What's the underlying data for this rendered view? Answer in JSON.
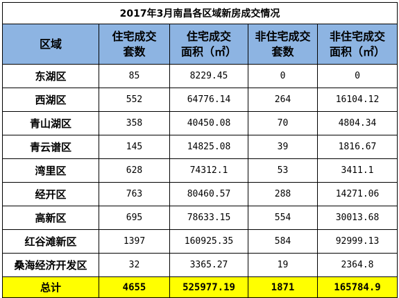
{
  "title": "2017年3月南昌各区域新房成交情况",
  "headers": [
    {
      "line1": "区域",
      "line2": ""
    },
    {
      "line1": "住宅成交",
      "line2": "套数"
    },
    {
      "line1": "住宅成交",
      "line2": "面积（㎡）"
    },
    {
      "line1": "非住宅成交",
      "line2": "套数"
    },
    {
      "line1": "非住宅成交",
      "line2": "面积（㎡）"
    }
  ],
  "rows": [
    {
      "region": "东湖区",
      "res_units": "85",
      "res_area": "8229.45",
      "nonres_units": "0",
      "nonres_area": "0"
    },
    {
      "region": "西湖区",
      "res_units": "552",
      "res_area": "64776.14",
      "nonres_units": "264",
      "nonres_area": "16104.12"
    },
    {
      "region": "青山湖区",
      "res_units": "358",
      "res_area": "40450.08",
      "nonres_units": "70",
      "nonres_area": "4804.34"
    },
    {
      "region": "青云谱区",
      "res_units": "145",
      "res_area": "14825.08",
      "nonres_units": "39",
      "nonres_area": "1816.67"
    },
    {
      "region": "湾里区",
      "res_units": "628",
      "res_area": "74312.1",
      "nonres_units": "53",
      "nonres_area": "3411.1"
    },
    {
      "region": "经开区",
      "res_units": "763",
      "res_area": "80460.57",
      "nonres_units": "288",
      "nonres_area": "14271.06"
    },
    {
      "region": "高新区",
      "res_units": "695",
      "res_area": "78633.15",
      "nonres_units": "554",
      "nonres_area": "30013.68"
    },
    {
      "region": "红谷滩新区",
      "res_units": "1397",
      "res_area": "160925.35",
      "nonres_units": "584",
      "nonres_area": "92999.13"
    },
    {
      "region": "桑海经济开发区",
      "res_units": "32",
      "res_area": "3365.27",
      "nonres_units": "19",
      "nonres_area": "2364.8"
    }
  ],
  "total": {
    "region": "总计",
    "res_units": "4655",
    "res_area": "525977.19",
    "nonres_units": "1871",
    "nonres_area": "165784.9"
  },
  "colors": {
    "header_bg": "#8db4e2",
    "total_bg": "#ffff00",
    "border": "#000000"
  }
}
